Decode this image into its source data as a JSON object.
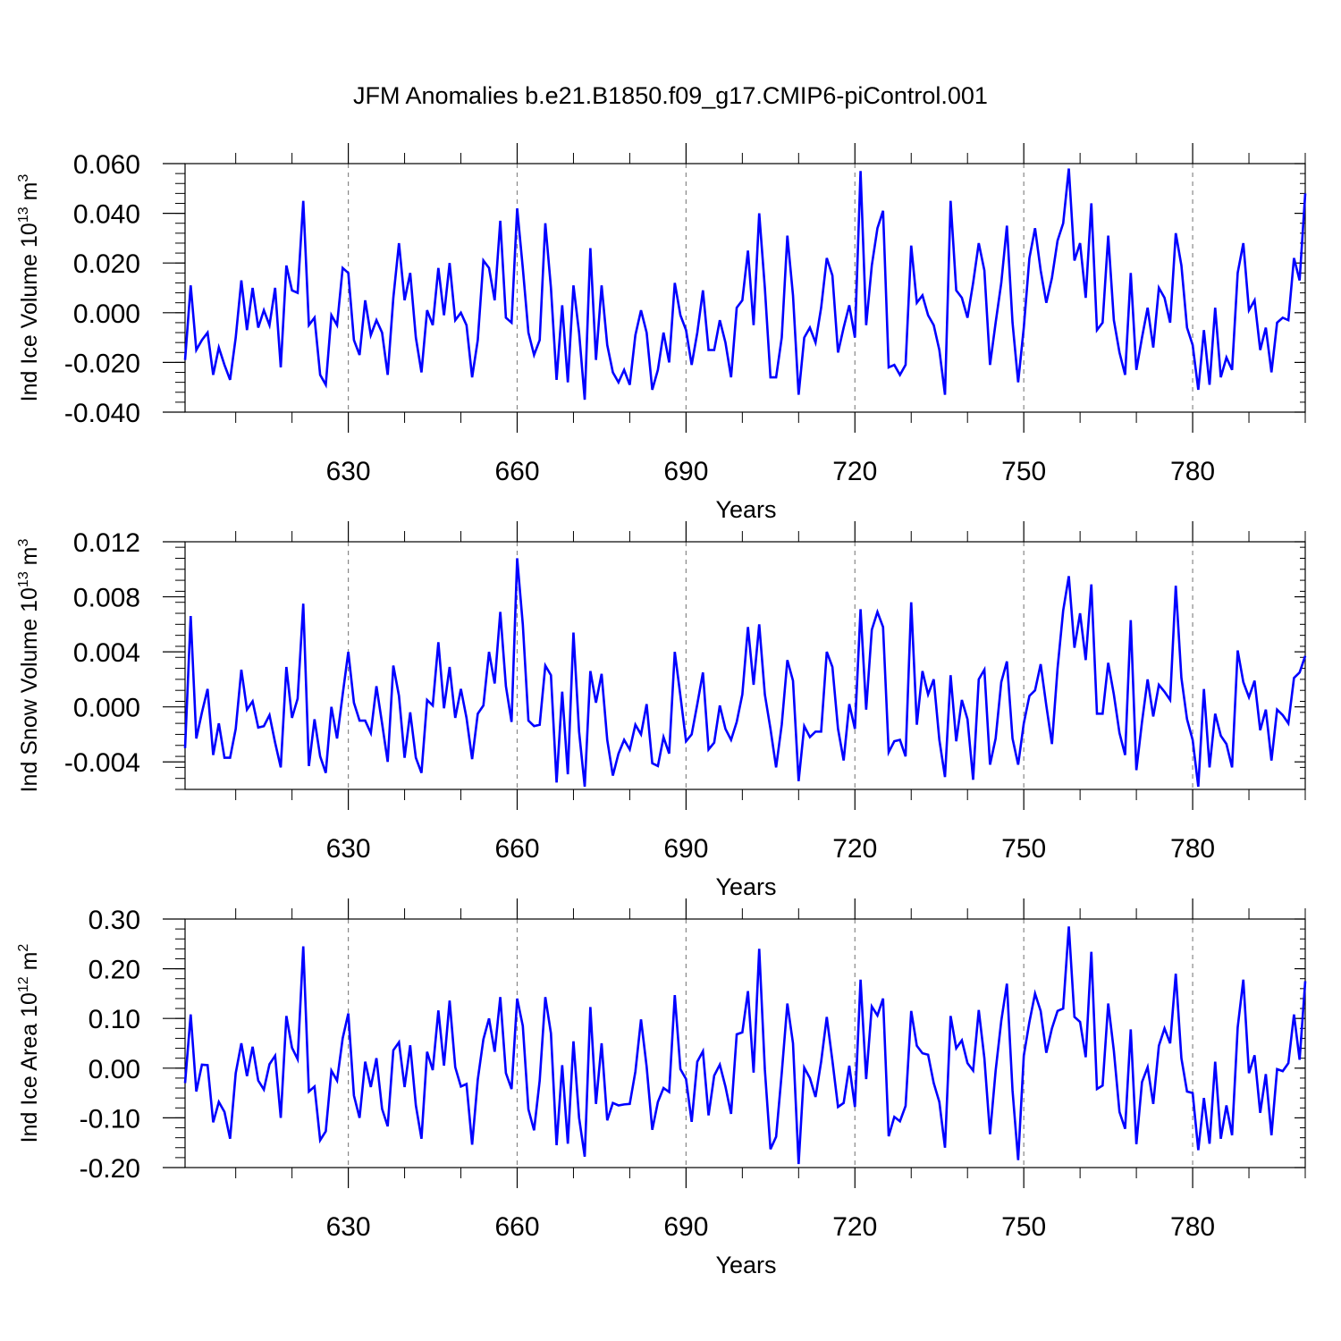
{
  "title": "JFM Anomalies b.e21.B1850.f09_g17.CMIP6-piControl.001",
  "colors": {
    "series": "#0000ff",
    "axis": "#000000",
    "grid": "#888888"
  },
  "chart_data": [
    {
      "type": "line",
      "ylabel": {
        "main": "Ind Ice Volume 10",
        "exp": "13",
        "unit": " m",
        "unit_exp": "3"
      },
      "xlabel": "Years",
      "xlim": [
        601,
        800
      ],
      "ylim": [
        -0.04,
        0.06
      ],
      "yticks": [
        -0.04,
        -0.02,
        0.0,
        0.02,
        0.04,
        0.06
      ],
      "ytick_labels": [
        "-0.040",
        "-0.020",
        "0.000",
        "0.020",
        "0.040",
        "0.060"
      ],
      "xticks": [
        630,
        660,
        690,
        720,
        750,
        780
      ],
      "xtick_labels": [
        "630",
        "660",
        "690",
        "720",
        "750",
        "780"
      ],
      "grid_x": [
        630,
        660,
        690,
        720,
        750,
        780
      ],
      "x_start": 601,
      "values": [
        -0.019,
        0.011,
        -0.015,
        -0.011,
        -0.008,
        -0.025,
        -0.014,
        -0.021,
        -0.027,
        -0.01,
        0.013,
        -0.007,
        0.01,
        -0.006,
        0.001,
        -0.005,
        0.01,
        -0.022,
        0.019,
        0.009,
        0.008,
        0.045,
        -0.005,
        -0.002,
        -0.025,
        -0.029,
        -0.001,
        -0.005,
        0.018,
        0.016,
        -0.011,
        -0.017,
        0.005,
        -0.009,
        -0.003,
        -0.008,
        -0.025,
        0.006,
        0.028,
        0.005,
        0.016,
        -0.01,
        -0.024,
        0.001,
        -0.005,
        0.018,
        -0.001,
        0.02,
        -0.003,
        0.0,
        -0.005,
        -0.026,
        -0.011,
        0.021,
        0.018,
        0.005,
        0.037,
        -0.002,
        -0.004,
        0.042,
        0.018,
        -0.008,
        -0.017,
        -0.011,
        0.036,
        0.01,
        -0.027,
        0.003,
        -0.028,
        0.011,
        -0.008,
        -0.035,
        0.026,
        -0.019,
        0.011,
        -0.013,
        -0.024,
        -0.028,
        -0.023,
        -0.029,
        -0.009,
        0.001,
        -0.008,
        -0.031,
        -0.023,
        -0.008,
        -0.02,
        0.012,
        -0.001,
        -0.007,
        -0.021,
        -0.008,
        0.009,
        -0.015,
        -0.015,
        -0.003,
        -0.012,
        -0.026,
        0.002,
        0.005,
        0.025,
        -0.005,
        0.04,
        0.01,
        -0.026,
        -0.026,
        -0.01,
        0.031,
        0.007,
        -0.033,
        -0.01,
        -0.006,
        -0.012,
        0.002,
        0.022,
        0.015,
        -0.016,
        -0.006,
        0.003,
        -0.01,
        0.057,
        -0.005,
        0.019,
        0.034,
        0.041,
        -0.022,
        -0.021,
        -0.025,
        -0.021,
        0.027,
        0.004,
        0.007,
        -0.001,
        -0.005,
        -0.015,
        -0.033,
        0.045,
        0.009,
        0.006,
        -0.002,
        0.012,
        0.028,
        0.017,
        -0.021,
        -0.004,
        0.012,
        0.035,
        -0.004,
        -0.028,
        -0.006,
        0.022,
        0.034,
        0.017,
        0.004,
        0.014,
        0.029,
        0.036,
        0.058,
        0.021,
        0.028,
        0.006,
        0.044,
        -0.007,
        -0.004,
        0.031,
        -0.003,
        -0.016,
        -0.025,
        0.016,
        -0.023,
        -0.01,
        0.002,
        -0.014,
        0.01,
        0.006,
        -0.004,
        0.032,
        0.019,
        -0.006,
        -0.013,
        -0.031,
        -0.007,
        -0.029,
        0.002,
        -0.026,
        -0.018,
        -0.023,
        0.016,
        0.028,
        0.001,
        0.005,
        -0.015,
        -0.006,
        -0.024,
        -0.004,
        -0.002,
        -0.003,
        0.022,
        0.013,
        0.048
      ]
    },
    {
      "type": "line",
      "ylabel": {
        "main": "Ind Snow Volume 10",
        "exp": "13",
        "unit": " m",
        "unit_exp": "3"
      },
      "xlabel": "Years",
      "xlim": [
        601,
        800
      ],
      "ylim": [
        -0.006,
        0.012
      ],
      "yticks": [
        -0.004,
        0.0,
        0.004,
        0.008,
        0.012
      ],
      "ytick_labels": [
        "-0.004",
        "0.000",
        "0.004",
        "0.008",
        "0.012"
      ],
      "xticks": [
        630,
        660,
        690,
        720,
        750,
        780
      ],
      "xtick_labels": [
        "630",
        "660",
        "690",
        "720",
        "750",
        "780"
      ],
      "grid_x": [
        630,
        660,
        690,
        720,
        750,
        780
      ],
      "x_start": 601,
      "values": [
        -0.003,
        0.0066,
        -0.0023,
        -0.0004,
        0.0013,
        -0.0035,
        -0.0012,
        -0.0037,
        -0.0037,
        -0.0016,
        0.0027,
        -0.0002,
        0.0004,
        -0.0015,
        -0.0014,
        -0.0006,
        -0.0026,
        -0.0044,
        0.0029,
        -0.0008,
        0.0006,
        0.0075,
        -0.0043,
        -0.0009,
        -0.0036,
        -0.0048,
        0.0,
        -0.0023,
        0.0009,
        0.004,
        0.0003,
        -0.001,
        -0.001,
        -0.0019,
        0.0015,
        -0.0012,
        -0.004,
        0.003,
        0.0008,
        -0.0037,
        -0.0004,
        -0.0037,
        -0.0048,
        0.0005,
        0.0001,
        0.0047,
        -0.0001,
        0.0029,
        -0.0008,
        0.0013,
        -0.0008,
        -0.0038,
        -0.0005,
        0.0001,
        0.004,
        0.0017,
        0.0069,
        0.0015,
        -0.0011,
        0.0108,
        0.006,
        -0.001,
        -0.0014,
        -0.0013,
        0.003,
        0.0023,
        -0.0055,
        0.0011,
        -0.0049,
        0.0054,
        -0.0018,
        -0.0058,
        0.0026,
        0.0003,
        0.0024,
        -0.0024,
        -0.005,
        -0.0034,
        -0.0024,
        -0.0031,
        -0.0013,
        -0.002,
        0.0002,
        -0.0041,
        -0.0043,
        -0.0022,
        -0.0034,
        0.004,
        0.0008,
        -0.0025,
        -0.002,
        0.0002,
        0.0025,
        -0.0031,
        -0.0026,
        0.0001,
        -0.0016,
        -0.0024,
        -0.0011,
        0.0009,
        0.0058,
        0.0016,
        0.006,
        0.0009,
        -0.0016,
        -0.0044,
        -0.0013,
        0.0034,
        0.0019,
        -0.0054,
        -0.0014,
        -0.0022,
        -0.0018,
        -0.0018,
        0.004,
        0.0029,
        -0.0016,
        -0.0039,
        0.0002,
        -0.0016,
        0.0071,
        -0.0002,
        0.0056,
        0.0069,
        0.0058,
        -0.0033,
        -0.0025,
        -0.0024,
        -0.0036,
        0.0076,
        -0.0013,
        0.0026,
        0.0009,
        0.002,
        -0.0024,
        -0.0051,
        0.0023,
        -0.0025,
        0.0005,
        -0.0009,
        -0.0053,
        0.002,
        0.0027,
        -0.0042,
        -0.0023,
        0.0018,
        0.0033,
        -0.0023,
        -0.0042,
        -0.0012,
        0.0008,
        0.0012,
        0.0031,
        0.0001,
        -0.0027,
        0.0028,
        0.007,
        0.0095,
        0.0043,
        0.0068,
        0.0034,
        0.0089,
        -0.0005,
        -0.0005,
        0.0032,
        0.0009,
        -0.0019,
        -0.0035,
        0.0063,
        -0.0046,
        -0.0011,
        0.002,
        -0.0007,
        0.0016,
        0.0011,
        0.0005,
        0.0088,
        0.0021,
        -0.0009,
        -0.0024,
        -0.0058,
        0.0013,
        -0.0044,
        -0.0005,
        -0.0021,
        -0.0027,
        -0.0044,
        0.0041,
        0.0018,
        0.0007,
        0.0019,
        -0.0017,
        -0.0002,
        -0.0039,
        -0.0002,
        -0.0006,
        -0.0012,
        0.0021,
        0.0025,
        0.0037
      ]
    },
    {
      "type": "line",
      "ylabel": {
        "main": "Ind Ice Area 10",
        "exp": "12",
        "unit": " m",
        "unit_exp": "2"
      },
      "xlabel": "Years",
      "xlim": [
        601,
        800
      ],
      "ylim": [
        -0.2,
        0.3
      ],
      "yticks": [
        -0.2,
        -0.1,
        0.0,
        0.1,
        0.2,
        0.3
      ],
      "ytick_labels": [
        "-0.20",
        "-0.10",
        "0.00",
        "0.10",
        "0.20",
        "0.30"
      ],
      "xticks": [
        630,
        660,
        690,
        720,
        750,
        780
      ],
      "xtick_labels": [
        "630",
        "660",
        "690",
        "720",
        "750",
        "780"
      ],
      "grid_x": [
        630,
        660,
        690,
        720,
        750,
        780
      ],
      "x_start": 601,
      "values": [
        -0.03,
        0.108,
        -0.047,
        0.007,
        0.006,
        -0.109,
        -0.068,
        -0.088,
        -0.142,
        -0.01,
        0.05,
        -0.016,
        0.043,
        -0.025,
        -0.043,
        0.008,
        0.025,
        -0.1,
        0.105,
        0.041,
        0.018,
        0.245,
        -0.047,
        -0.037,
        -0.145,
        -0.127,
        -0.005,
        -0.025,
        0.06,
        0.11,
        -0.055,
        -0.1,
        0.013,
        -0.038,
        0.02,
        -0.082,
        -0.117,
        0.036,
        0.052,
        -0.038,
        0.046,
        -0.075,
        -0.142,
        0.033,
        -0.004,
        0.116,
        0.005,
        0.136,
        0.002,
        -0.037,
        -0.032,
        -0.154,
        -0.023,
        0.058,
        0.1,
        0.033,
        0.143,
        -0.01,
        -0.042,
        0.14,
        0.085,
        -0.083,
        -0.125,
        -0.025,
        0.143,
        0.07,
        -0.155,
        0.006,
        -0.152,
        0.054,
        -0.1,
        -0.178,
        0.123,
        -0.072,
        0.05,
        -0.105,
        -0.07,
        -0.075,
        -0.073,
        -0.072,
        -0.007,
        0.098,
        0.003,
        -0.124,
        -0.068,
        -0.04,
        -0.048,
        0.147,
        -0.002,
        -0.022,
        -0.108,
        0.013,
        0.034,
        -0.095,
        -0.015,
        0.007,
        -0.037,
        -0.092,
        0.068,
        0.072,
        0.155,
        -0.009,
        0.24,
        -0.003,
        -0.163,
        -0.138,
        -0.01,
        0.13,
        0.05,
        -0.193,
        0.001,
        -0.02,
        -0.058,
        0.013,
        0.103,
        0.015,
        -0.078,
        -0.07,
        0.005,
        -0.078,
        0.178,
        -0.022,
        0.124,
        0.106,
        0.14,
        -0.137,
        -0.098,
        -0.107,
        -0.076,
        0.115,
        0.045,
        0.03,
        0.027,
        -0.03,
        -0.068,
        -0.16,
        0.105,
        0.04,
        0.056,
        0.01,
        -0.005,
        0.117,
        0.02,
        -0.133,
        -0.005,
        0.095,
        0.17,
        -0.045,
        -0.185,
        0.025,
        0.093,
        0.15,
        0.115,
        0.031,
        0.08,
        0.115,
        0.12,
        0.285,
        0.103,
        0.093,
        0.022,
        0.234,
        -0.042,
        -0.035,
        0.13,
        0.035,
        -0.088,
        -0.122,
        0.078,
        -0.153,
        -0.028,
        0.002,
        -0.072,
        0.045,
        0.08,
        0.05,
        0.19,
        0.02,
        -0.047,
        -0.05,
        -0.165,
        -0.06,
        -0.152,
        0.013,
        -0.142,
        -0.075,
        -0.135,
        0.082,
        0.178,
        -0.01,
        0.026,
        -0.09,
        -0.012,
        -0.135,
        -0.002,
        -0.006,
        0.01,
        0.108,
        0.017,
        0.175
      ]
    }
  ]
}
